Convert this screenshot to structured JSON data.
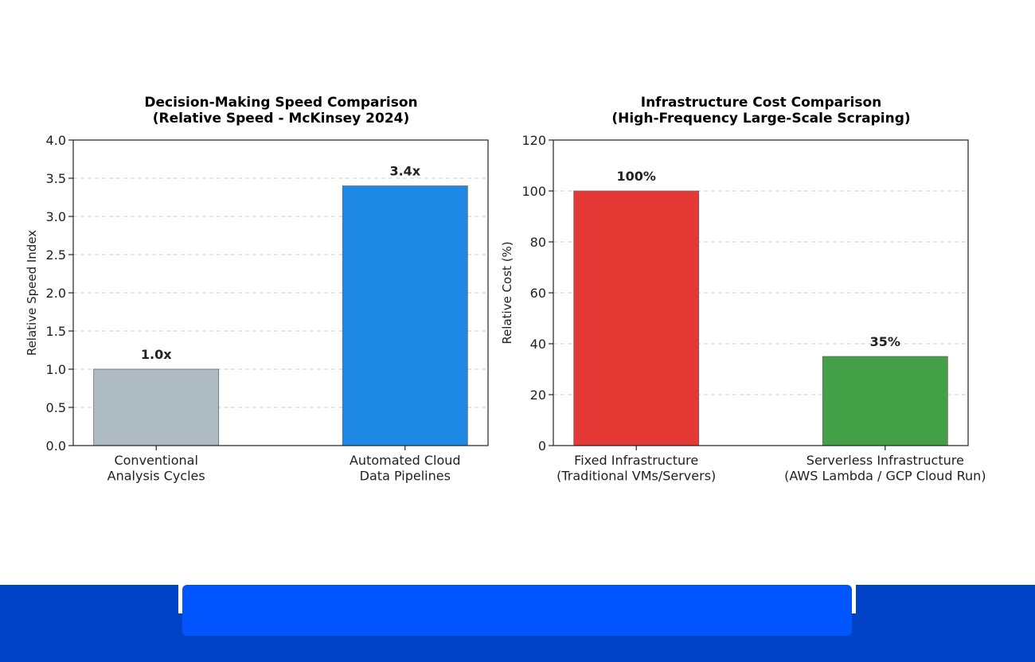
{
  "chart_data": [
    {
      "type": "bar",
      "title": [
        "Decision-Making Speed Comparison",
        "(Relative Speed - McKinsey 2024)"
      ],
      "xlabel": "",
      "ylabel": "Relative Speed Index",
      "categories": [
        [
          "Conventional",
          "Analysis Cycles"
        ],
        [
          "Automated Cloud",
          "Data Pipelines"
        ]
      ],
      "values": [
        1.0,
        3.4
      ],
      "value_labels": [
        "1.0x",
        "3.4x"
      ],
      "colors": [
        "#b0bcc4",
        "#1e88e5"
      ],
      "ylim": [
        0,
        4.0
      ],
      "yticks": [
        0.0,
        0.5,
        1.0,
        1.5,
        2.0,
        2.5,
        3.0,
        3.5,
        4.0
      ],
      "ytick_labels": [
        "0.0",
        "0.5",
        "1.0",
        "1.5",
        "2.0",
        "2.5",
        "3.0",
        "3.5",
        "4.0"
      ],
      "grid": "y-dashed"
    },
    {
      "type": "bar",
      "title": [
        "Infrastructure Cost Comparison",
        "(High-Frequency Large-Scale Scraping)"
      ],
      "xlabel": "",
      "ylabel": "Relative Cost (%)",
      "categories": [
        [
          "Fixed Infrastructure",
          "(Traditional VMs/Servers)"
        ],
        [
          "Serverless Infrastructure",
          "(AWS Lambda / GCP Cloud Run)"
        ]
      ],
      "values": [
        100,
        35
      ],
      "value_labels": [
        "100%",
        "35%"
      ],
      "colors": [
        "#e53935",
        "#43a047"
      ],
      "ylim": [
        0,
        120
      ],
      "yticks": [
        0,
        20,
        40,
        60,
        80,
        100,
        120
      ],
      "ytick_labels": [
        "0",
        "20",
        "40",
        "60",
        "80",
        "100",
        "120"
      ],
      "grid": "y-dashed"
    }
  ],
  "footer": {
    "band_color": "#0043c8",
    "center_bar_color": "#0055ff"
  }
}
